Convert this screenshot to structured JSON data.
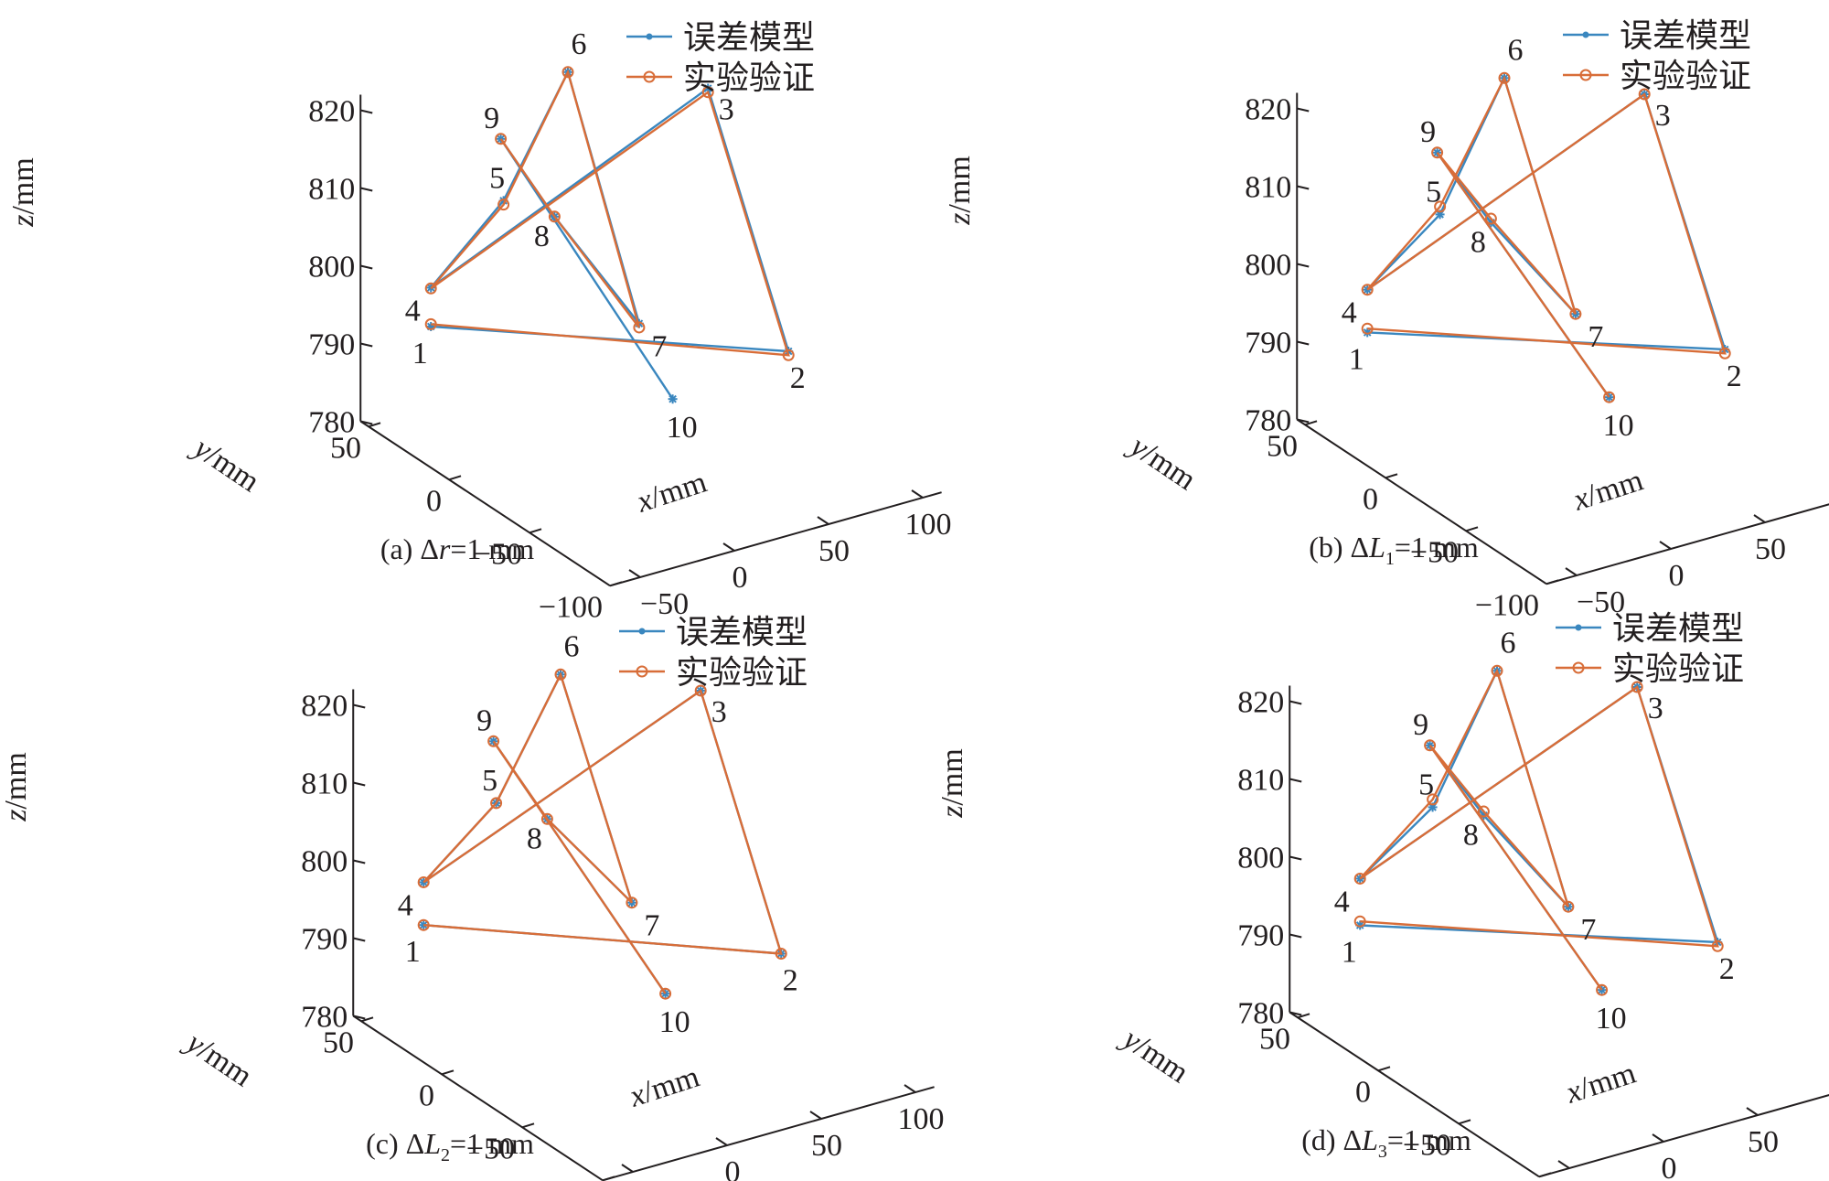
{
  "chart_data": [
    {
      "type": "line3d",
      "caption": {
        "prefix": "(a) Δ",
        "var": "r",
        "sub": "",
        "suffix": "=1 mm"
      },
      "xlabel": {
        "var": "x",
        "unit": "/mm"
      },
      "ylabel": {
        "var": "y",
        "unit": "/mm"
      },
      "zlabel": {
        "var": "z",
        "unit": "/mm"
      },
      "xticks": [
        "−50",
        "0",
        "50",
        "100"
      ],
      "yticks": [
        "50",
        "0",
        "−50",
        "−100"
      ],
      "zticks": [
        "820",
        "810",
        "800",
        "790",
        "780"
      ],
      "legend": {
        "position": "top-right"
      },
      "series": [
        {
          "name": "误差模型",
          "color": "#3a87bf",
          "marker": "asterisk",
          "order": [
            1,
            2,
            3,
            4,
            5,
            6,
            7,
            8,
            9,
            10
          ],
          "points": [
            [
              -50,
              30,
              794.5
            ],
            [
              80,
              -40,
              792
            ],
            [
              80,
              10,
              819
            ],
            [
              -50,
              30,
              799.5
            ],
            [
              -20,
              20,
              810
            ],
            [
              -20,
              -20,
              832
            ],
            [
              5,
              -35,
              800
            ],
            [
              -10,
              0,
              810
            ],
            [
              -30,
              10,
              820
            ],
            [
              10,
              -50,
              792
            ]
          ]
        },
        {
          "name": "实验验证",
          "color": "#d86d38",
          "marker": "circle",
          "order": [
            1,
            2,
            3,
            4,
            5,
            6,
            7,
            8,
            9
          ],
          "points": [
            [
              -50,
              30,
              794.8
            ],
            [
              80,
              -40,
              791.5
            ],
            [
              80,
              10,
              818.5
            ],
            [
              -50,
              30,
              799.4
            ],
            [
              -20,
              20,
              809.5
            ],
            [
              -20,
              -20,
              832
            ],
            [
              5,
              -35,
              799.5
            ],
            [
              -10,
              0,
              810
            ],
            [
              -30,
              10,
              820
            ]
          ]
        }
      ],
      "point_labels": [
        "1",
        "2",
        "3",
        "4",
        "5",
        "6",
        "7",
        "8",
        "9",
        "10"
      ]
    },
    {
      "type": "line3d",
      "caption": {
        "prefix": "(b) Δ",
        "var": "L",
        "sub": "1",
        "suffix": "=1 mm"
      },
      "xlabel": {
        "var": "x",
        "unit": "/mm"
      },
      "ylabel": {
        "var": "y",
        "unit": "/mm"
      },
      "zlabel": {
        "var": "z",
        "unit": "/mm"
      },
      "xticks": [
        "−50",
        "0",
        "50",
        "100"
      ],
      "yticks": [
        "50",
        "0",
        "−50",
        "−100"
      ],
      "zticks": [
        "820",
        "810",
        "800",
        "790",
        "780"
      ],
      "legend": {
        "position": "top-right"
      },
      "series": [
        {
          "name": "误差模型",
          "color": "#3a87bf",
          "marker": "asterisk",
          "order": [
            1,
            2,
            3,
            4,
            5,
            6,
            7,
            8,
            9,
            10
          ],
          "points": [
            [
              -50,
              30,
              793.5
            ],
            [
              80,
              -40,
              792
            ],
            [
              80,
              10,
              818
            ],
            [
              -50,
              30,
              799
            ],
            [
              -20,
              20,
              808
            ],
            [
              -20,
              -20,
              831
            ],
            [
              5,
              -35,
              801
            ],
            [
              -10,
              0,
              809
            ],
            [
              -30,
              10,
              818
            ],
            [
              10,
              -50,
              792
            ]
          ]
        },
        {
          "name": "实验验证",
          "color": "#d86d38",
          "marker": "circle",
          "order": [
            1,
            2,
            3,
            4,
            5,
            6,
            7,
            8,
            9,
            10
          ],
          "points": [
            [
              -50,
              30,
              794
            ],
            [
              80,
              -40,
              791.5
            ],
            [
              80,
              10,
              818
            ],
            [
              -50,
              30,
              799
            ],
            [
              -20,
              20,
              809
            ],
            [
              -20,
              -20,
              831
            ],
            [
              5,
              -35,
              801
            ],
            [
              -10,
              0,
              809.5
            ],
            [
              -30,
              10,
              818
            ],
            [
              10,
              -50,
              792
            ]
          ]
        }
      ],
      "point_labels": [
        "1",
        "2",
        "3",
        "4",
        "5",
        "6",
        "7",
        "8",
        "9",
        "10"
      ]
    },
    {
      "type": "line3d",
      "caption": {
        "prefix": "(c) Δ",
        "var": "L",
        "sub": "2",
        "suffix": "=1 mm"
      },
      "xlabel": {
        "var": "x",
        "unit": "/mm"
      },
      "ylabel": {
        "var": "y",
        "unit": "/mm"
      },
      "zlabel": {
        "var": "z",
        "unit": "/mm"
      },
      "xticks": [
        "−50",
        "0",
        "50",
        "100"
      ],
      "yticks": [
        "50",
        "0",
        "−50",
        "−100"
      ],
      "zticks": [
        "820",
        "810",
        "800",
        "790",
        "780"
      ],
      "legend": {
        "position": "top-right"
      },
      "series": [
        {
          "name": "误差模型",
          "color": "#3a87bf",
          "marker": "asterisk",
          "order": [
            1,
            2,
            3,
            4,
            5,
            6,
            7,
            8,
            9,
            10
          ],
          "points": [
            [
              -50,
              30,
              794
            ],
            [
              80,
              -40,
              791
            ],
            [
              80,
              10,
              818
            ],
            [
              -50,
              30,
              799.5
            ],
            [
              -20,
              20,
              809
            ],
            [
              -20,
              -20,
              831
            ],
            [
              5,
              -35,
              802
            ],
            [
              -10,
              0,
              809
            ],
            [
              -30,
              10,
              819
            ],
            [
              10,
              -50,
              792
            ]
          ]
        },
        {
          "name": "实验验证",
          "color": "#d86d38",
          "marker": "circle",
          "order": [
            1,
            2,
            3,
            4,
            5,
            6,
            7,
            8,
            9,
            10
          ],
          "points": [
            [
              -50,
              30,
              794
            ],
            [
              80,
              -40,
              791
            ],
            [
              80,
              10,
              818
            ],
            [
              -50,
              30,
              799.5
            ],
            [
              -20,
              20,
              809
            ],
            [
              -20,
              -20,
              831
            ],
            [
              5,
              -35,
              802
            ],
            [
              -10,
              0,
              809
            ],
            [
              -30,
              10,
              819
            ],
            [
              10,
              -50,
              792
            ]
          ]
        }
      ],
      "point_labels": [
        "1",
        "2",
        "3",
        "4",
        "5",
        "6",
        "7",
        "8",
        "9",
        "10"
      ]
    },
    {
      "type": "line3d",
      "caption": {
        "prefix": "(d) Δ",
        "var": "L",
        "sub": "3",
        "suffix": "=1 mm"
      },
      "xlabel": {
        "var": "x",
        "unit": "/mm"
      },
      "ylabel": {
        "var": "y",
        "unit": "/mm"
      },
      "zlabel": {
        "var": "z",
        "unit": "/mm"
      },
      "xticks": [
        "−50",
        "0",
        "50",
        "100"
      ],
      "yticks": [
        "50",
        "0",
        "−50",
        "−100"
      ],
      "zticks": [
        "820",
        "810",
        "800",
        "790",
        "780"
      ],
      "legend": {
        "position": "top-right"
      },
      "series": [
        {
          "name": "误差模型",
          "color": "#3a87bf",
          "marker": "asterisk",
          "order": [
            1,
            2,
            3,
            4,
            5,
            6,
            7,
            8,
            9,
            10
          ],
          "points": [
            [
              -50,
              30,
              793.5
            ],
            [
              80,
              -40,
              792
            ],
            [
              80,
              10,
              818
            ],
            [
              -50,
              30,
              799.5
            ],
            [
              -20,
              20,
              808
            ],
            [
              -20,
              -20,
              831
            ],
            [
              5,
              -35,
              801
            ],
            [
              -10,
              0,
              809
            ],
            [
              -30,
              10,
              818
            ],
            [
              10,
              -50,
              792
            ]
          ]
        },
        {
          "name": "实验验证",
          "color": "#d86d38",
          "marker": "circle",
          "order": [
            1,
            2,
            3,
            4,
            5,
            6,
            7,
            8,
            9,
            10
          ],
          "points": [
            [
              -50,
              30,
              794
            ],
            [
              80,
              -40,
              791.5
            ],
            [
              80,
              10,
              818
            ],
            [
              -50,
              30,
              799.5
            ],
            [
              -20,
              20,
              809
            ],
            [
              -20,
              -20,
              831
            ],
            [
              5,
              -35,
              801
            ],
            [
              -10,
              0,
              809.5
            ],
            [
              -30,
              10,
              818
            ],
            [
              10,
              -50,
              792
            ]
          ]
        }
      ],
      "point_labels": [
        "1",
        "2",
        "3",
        "4",
        "5",
        "6",
        "7",
        "8",
        "9",
        "10"
      ]
    }
  ]
}
